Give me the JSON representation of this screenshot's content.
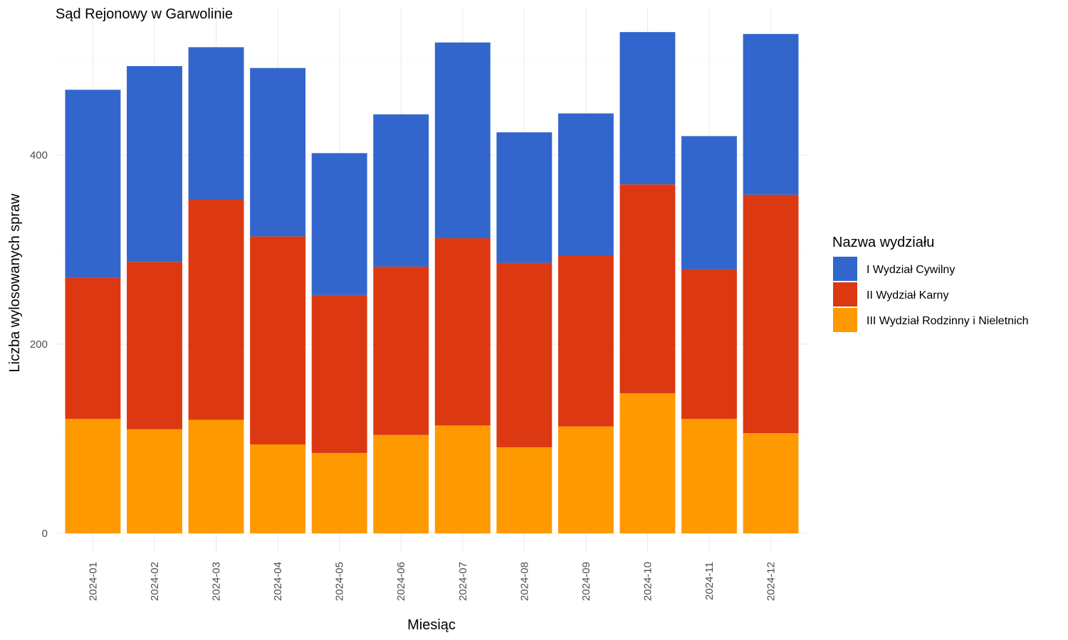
{
  "chart_data": {
    "type": "bar",
    "stacked": true,
    "title": "Sąd Rejonowy w Garwolinie",
    "xlabel": "Miesiąc",
    "ylabel": "Liczba wylosowanych spraw",
    "ylim": [
      0,
      550
    ],
    "yticks": [
      0,
      200,
      400
    ],
    "grid": true,
    "legend_title": "Nazwa wydziału",
    "legend_position": "right",
    "categories": [
      "2024-01",
      "2024-02",
      "2024-03",
      "2024-04",
      "2024-05",
      "2024-06",
      "2024-07",
      "2024-08",
      "2024-09",
      "2024-10",
      "2024-11",
      "2024-12"
    ],
    "series": [
      {
        "name": "III Wydział Rodzinny i Nieletnich",
        "color": "#FF9900",
        "values": [
          121,
          110,
          120,
          94,
          85,
          104,
          114,
          91,
          113,
          148,
          121,
          106
        ]
      },
      {
        "name": "II Wydział Karny",
        "color": "#DC3912",
        "values": [
          149,
          177,
          233,
          220,
          167,
          178,
          198,
          195,
          181,
          221,
          158,
          252
        ]
      },
      {
        "name": "I Wydział Cywilny",
        "color": "#3366CC",
        "values": [
          199,
          207,
          161,
          178,
          150,
          161,
          207,
          138,
          150,
          161,
          141,
          170
        ]
      }
    ]
  }
}
